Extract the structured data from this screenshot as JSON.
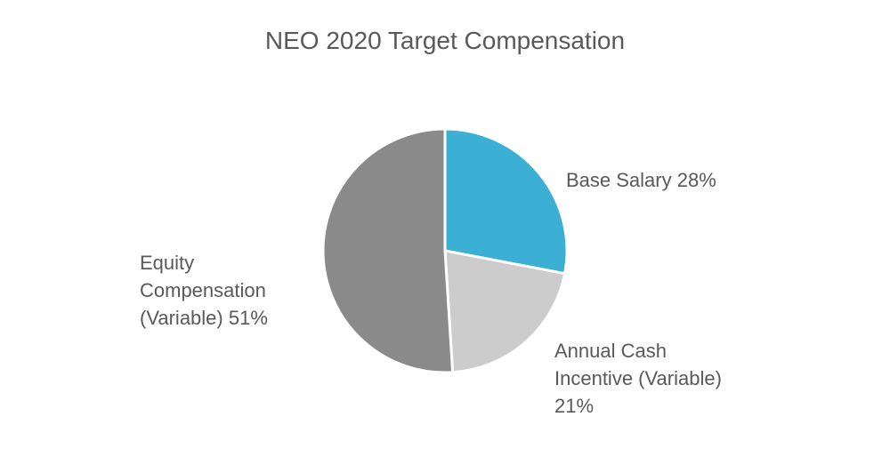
{
  "chart_data": {
    "type": "pie",
    "title": "NEO 2020 Target Compensation",
    "slices": [
      {
        "label_lines": [
          "Base Salary 28%"
        ],
        "value": 28,
        "color": "#3bb0d4"
      },
      {
        "label_lines": [
          "Annual Cash",
          "Incentive (Variable)",
          "21%"
        ],
        "value": 21,
        "color": "#cccccc"
      },
      {
        "label_lines": [
          "Equity",
          "Compensation",
          "(Variable) 51%"
        ],
        "value": 51,
        "color": "#8a8a8a"
      }
    ],
    "start_angle_deg": 0,
    "direction": "clockwise",
    "legend": "none"
  }
}
